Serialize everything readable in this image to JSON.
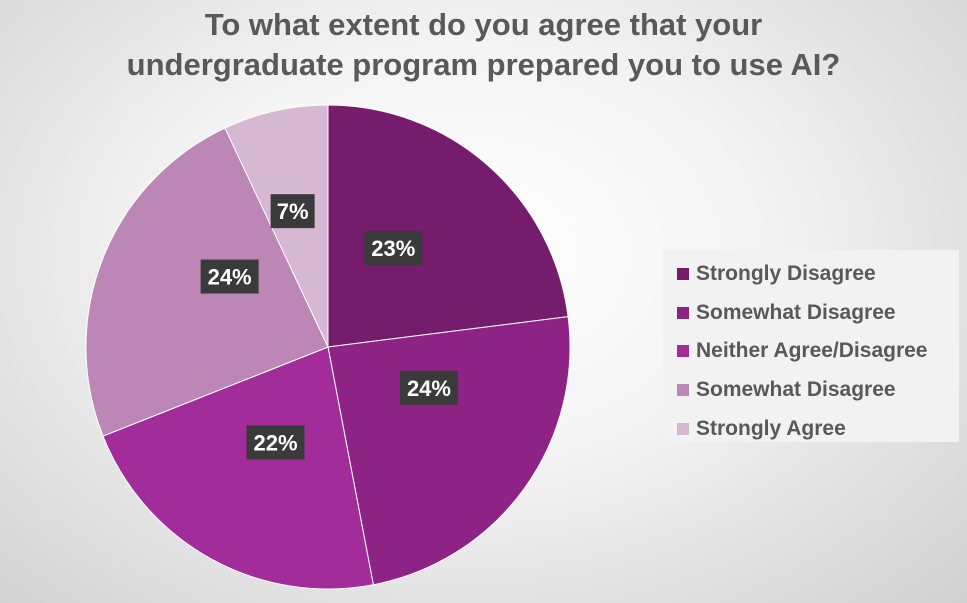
{
  "chart_data": {
    "type": "pie",
    "title": "To what extent do you agree that your undergraduate program prepared you to use AI?",
    "title_lines": [
      "To what extent do you agree that your",
      "undergraduate program prepared you to use AI?"
    ],
    "slices": [
      {
        "label": "Strongly Disagree",
        "value": 23,
        "display": "23%",
        "color": "#761c6c"
      },
      {
        "label": "Somewhat Disagree",
        "value": 24,
        "display": "24%",
        "color": "#8c2385"
      },
      {
        "label": "Neither Agree/Disagree",
        "value": 22,
        "display": "22%",
        "color": "#a22d9a"
      },
      {
        "label": "Somewhat Disagree",
        "value": 24,
        "display": "24%",
        "color": "#bc86b7"
      },
      {
        "label": "Strongly Agree",
        "value": 7,
        "display": "7%",
        "color": "#d6b8d3"
      }
    ],
    "start_angle": "12 o'clock",
    "direction": "clockwise",
    "legend_position": "right",
    "data_labels": "percent, dark boxes"
  }
}
